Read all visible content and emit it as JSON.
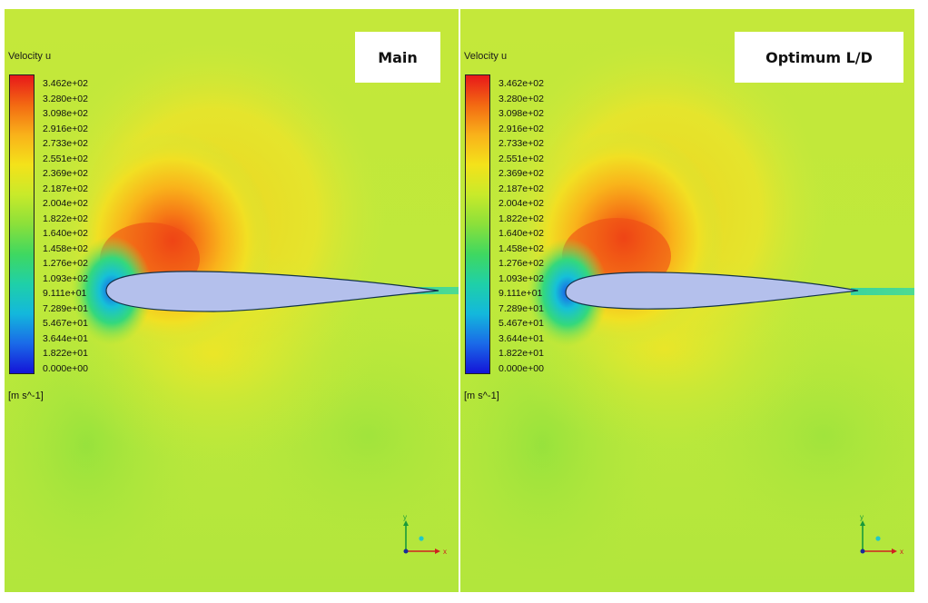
{
  "panels": [
    {
      "title": "Main",
      "variable_label": "Velocity u",
      "units": "[m s^-1]",
      "legend_values": [
        "3.462e+02",
        "3.280e+02",
        "3.098e+02",
        "2.916e+02",
        "2.733e+02",
        "2.551e+02",
        "2.369e+02",
        "2.187e+02",
        "2.004e+02",
        "1.822e+02",
        "1.640e+02",
        "1.458e+02",
        "1.276e+02",
        "1.093e+02",
        "9.111e+01",
        "7.289e+01",
        "5.467e+01",
        "3.644e+01",
        "1.822e+01",
        "0.000e+00"
      ],
      "axis_x": "x",
      "axis_y": "y"
    },
    {
      "title": "Optimum L/D",
      "variable_label": "Velocity u",
      "units": "[m s^-1]",
      "legend_values": [
        "3.462e+02",
        "3.280e+02",
        "3.098e+02",
        "2.916e+02",
        "2.733e+02",
        "2.551e+02",
        "2.369e+02",
        "2.187e+02",
        "2.004e+02",
        "1.822e+02",
        "1.640e+02",
        "1.458e+02",
        "1.276e+02",
        "1.093e+02",
        "9.111e+01",
        "7.289e+01",
        "5.467e+01",
        "3.644e+01",
        "1.822e+01",
        "0.000e+00"
      ],
      "axis_x": "x",
      "axis_y": "y"
    }
  ],
  "colors": {
    "background_field": "#b8e83a",
    "airfoil_fill": "#b4c0ec",
    "colormap": [
      "#e8181a",
      "#f36a12",
      "#f9b21a",
      "#f4e21a",
      "#c9ea2a",
      "#8be03a",
      "#3fd860",
      "#1fd0a8",
      "#13b8dc",
      "#1a6ae8",
      "#1414d8"
    ]
  }
}
